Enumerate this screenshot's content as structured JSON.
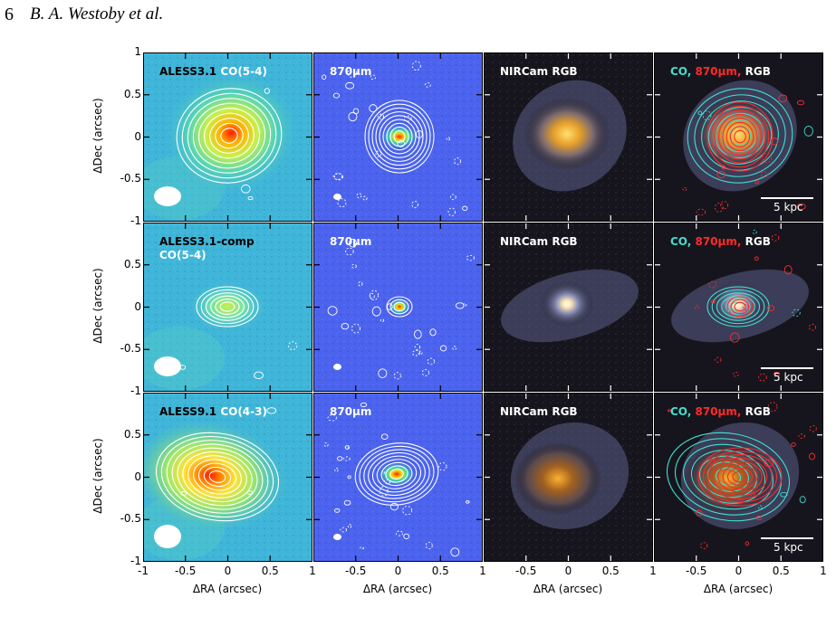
{
  "header": {
    "page_number": "6",
    "authors": "B. A. Westoby et al."
  },
  "rows": [
    {
      "panels": [
        {
          "kind": "co",
          "lines": [
            [
              {
                "t": "ALESS3.1 ",
                "c": "black"
              },
              {
                "t": "CO(5-4)",
                "c": "white"
              }
            ]
          ]
        },
        {
          "kind": "submm",
          "lines": [
            [
              {
                "t": "870μm",
                "c": "white"
              }
            ]
          ]
        },
        {
          "kind": "nircam",
          "lines": [
            [
              {
                "t": "NIRCam RGB",
                "c": "white"
              }
            ]
          ]
        },
        {
          "kind": "composite",
          "lines": [
            [
              {
                "t": "CO, ",
                "c": "cyan"
              },
              {
                "t": "870μm, ",
                "c": "red"
              },
              {
                "t": "RGB",
                "c": "white"
              }
            ]
          ],
          "scale_label": "5 kpc"
        }
      ]
    },
    {
      "panels": [
        {
          "kind": "co",
          "lines": [
            [
              {
                "t": "ALESS3.1-comp",
                "c": "black"
              }
            ],
            [
              {
                "t": "CO(5-4)",
                "c": "white"
              }
            ]
          ]
        },
        {
          "kind": "submm",
          "lines": [
            [
              {
                "t": "870μm",
                "c": "white"
              }
            ]
          ]
        },
        {
          "kind": "nircam",
          "lines": [
            [
              {
                "t": "NIRCam RGB",
                "c": "white"
              }
            ]
          ]
        },
        {
          "kind": "composite",
          "lines": [
            [
              {
                "t": "CO, ",
                "c": "cyan"
              },
              {
                "t": "870μm, ",
                "c": "red"
              },
              {
                "t": "RGB",
                "c": "white"
              }
            ]
          ],
          "scale_label": "5 kpc"
        }
      ]
    },
    {
      "panels": [
        {
          "kind": "co",
          "lines": [
            [
              {
                "t": "ALESS9.1 ",
                "c": "black"
              },
              {
                "t": "CO(4-3)",
                "c": "white"
              }
            ]
          ]
        },
        {
          "kind": "submm",
          "lines": [
            [
              {
                "t": "870μm",
                "c": "white"
              }
            ]
          ]
        },
        {
          "kind": "nircam",
          "lines": [
            [
              {
                "t": "NIRCam RGB",
                "c": "white"
              }
            ]
          ]
        },
        {
          "kind": "composite",
          "lines": [
            [
              {
                "t": "CO, ",
                "c": "cyan"
              },
              {
                "t": "870μm, ",
                "c": "red"
              },
              {
                "t": "RGB",
                "c": "white"
              }
            ]
          ],
          "scale_label": "5 kpc"
        }
      ]
    }
  ],
  "axes": {
    "y_label": "ΔDec (arcsec)",
    "x_label": "ΔRA (arcsec)",
    "y_ticks": [
      "1",
      "0.5",
      "0",
      "-0.5",
      "-1"
    ],
    "x_ticks_first": [
      "-1",
      "-0.5",
      "0",
      "0.5",
      "1"
    ],
    "x_ticks": [
      "-0.5",
      "0",
      "0.5",
      "1"
    ]
  },
  "colors": {
    "co_label": "#40e0d0",
    "submm_label": "#ff2a2a",
    "text_white": "#ffffff"
  }
}
